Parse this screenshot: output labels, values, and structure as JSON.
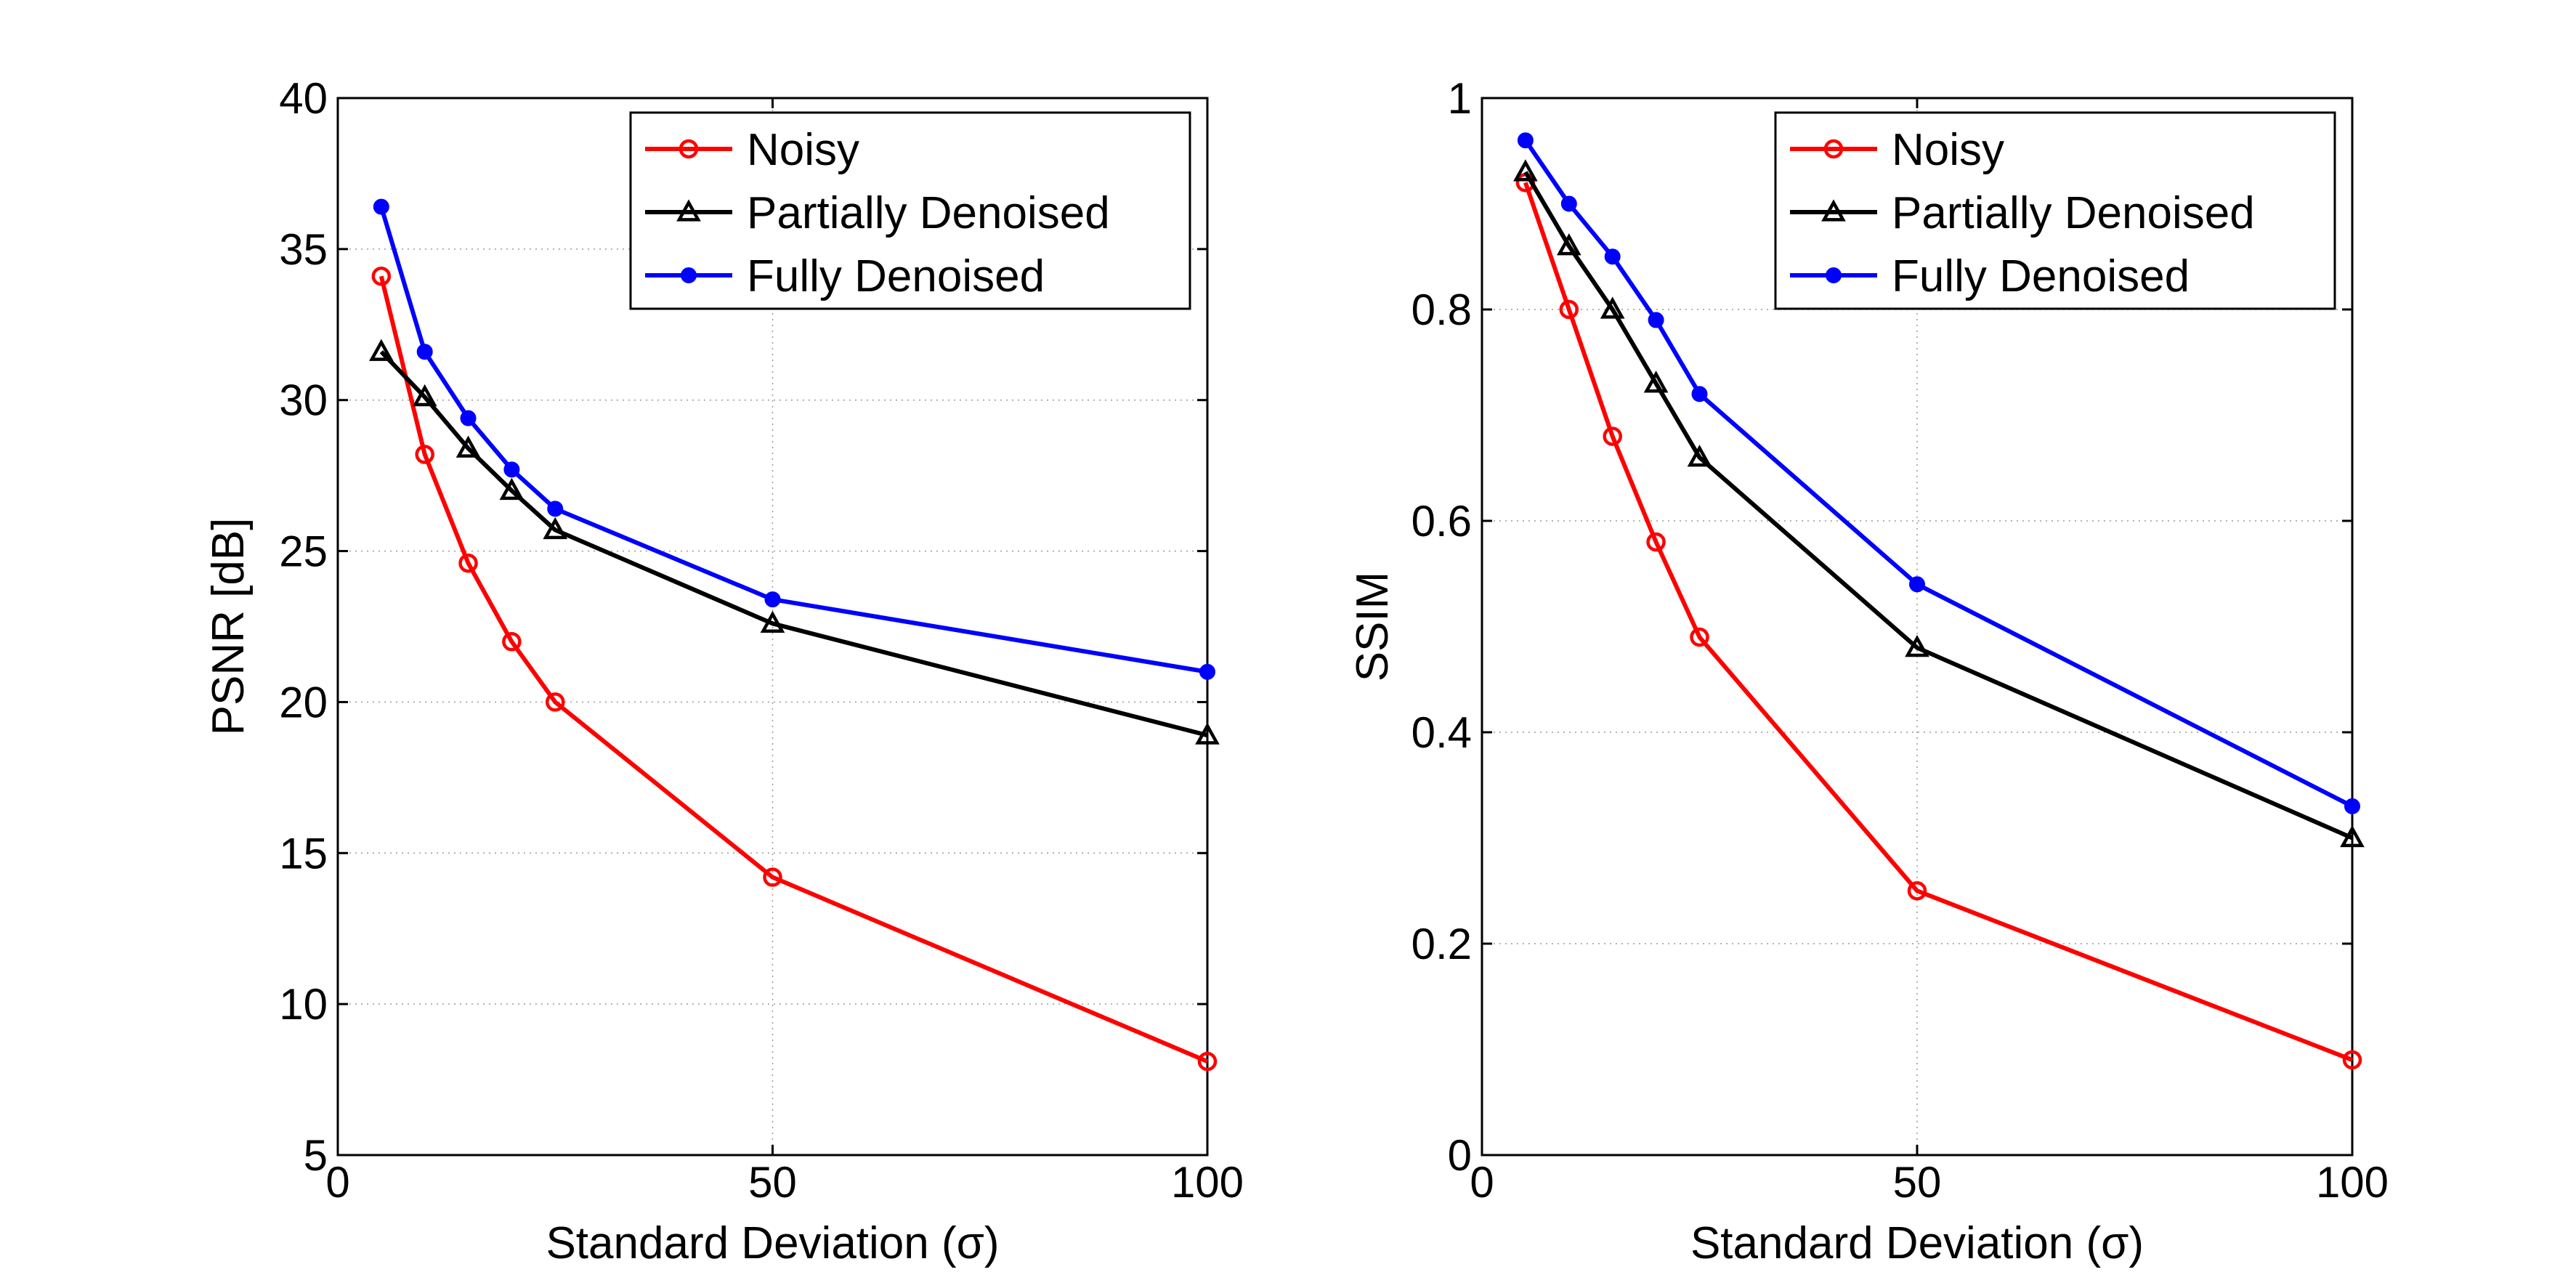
{
  "chart_data": [
    {
      "type": "line",
      "xlabel": "Standard Deviation (σ)",
      "ylabel": "PSNR [dB]",
      "xlim": [
        0,
        100
      ],
      "ylim": [
        5,
        40
      ],
      "xticks": [
        0,
        50,
        100
      ],
      "yticks": [
        5,
        10,
        15,
        20,
        25,
        30,
        35,
        40
      ],
      "xtick_labels": [
        "0",
        "50",
        "100"
      ],
      "ytick_labels": [
        "5",
        "10",
        "15",
        "20",
        "25",
        "30",
        "35",
        "40"
      ],
      "grid": true,
      "legend_position": "top-right",
      "x": [
        5,
        10,
        15,
        20,
        25,
        50,
        100
      ],
      "series": [
        {
          "name": "Noisy",
          "color": "#ff0000",
          "marker": "circle",
          "values": [
            34.1,
            28.2,
            24.6,
            22.0,
            20.0,
            14.2,
            8.1
          ]
        },
        {
          "name": "Partially Denoised",
          "color": "#000000",
          "marker": "triangle",
          "values": [
            31.6,
            30.1,
            28.4,
            27.0,
            25.7,
            22.6,
            18.9
          ]
        },
        {
          "name": "Fully Denoised",
          "color": "#0000ff",
          "marker": "dot",
          "values": [
            36.4,
            31.6,
            29.4,
            27.7,
            26.4,
            23.4,
            21.0
          ]
        }
      ]
    },
    {
      "type": "line",
      "xlabel": "Standard Deviation (σ)",
      "ylabel": "SSIM",
      "xlim": [
        0,
        100
      ],
      "ylim": [
        0,
        1
      ],
      "xticks": [
        0,
        50,
        100
      ],
      "yticks": [
        0,
        0.2,
        0.4,
        0.6,
        0.8,
        1
      ],
      "xtick_labels": [
        "0",
        "50",
        "100"
      ],
      "ytick_labels": [
        "0",
        "0.2",
        "0.4",
        "0.6",
        "0.8",
        "1"
      ],
      "grid": true,
      "legend_position": "top-right",
      "x": [
        5,
        10,
        15,
        20,
        25,
        50,
        100
      ],
      "series": [
        {
          "name": "Noisy",
          "color": "#ff0000",
          "marker": "circle",
          "values": [
            0.92,
            0.8,
            0.68,
            0.58,
            0.49,
            0.25,
            0.09
          ]
        },
        {
          "name": "Partially Denoised",
          "color": "#000000",
          "marker": "triangle",
          "values": [
            0.93,
            0.86,
            0.8,
            0.73,
            0.66,
            0.48,
            0.3
          ]
        },
        {
          "name": "Fully Denoised",
          "color": "#0000ff",
          "marker": "dot",
          "values": [
            0.96,
            0.9,
            0.85,
            0.79,
            0.72,
            0.54,
            0.33
          ]
        }
      ]
    }
  ]
}
